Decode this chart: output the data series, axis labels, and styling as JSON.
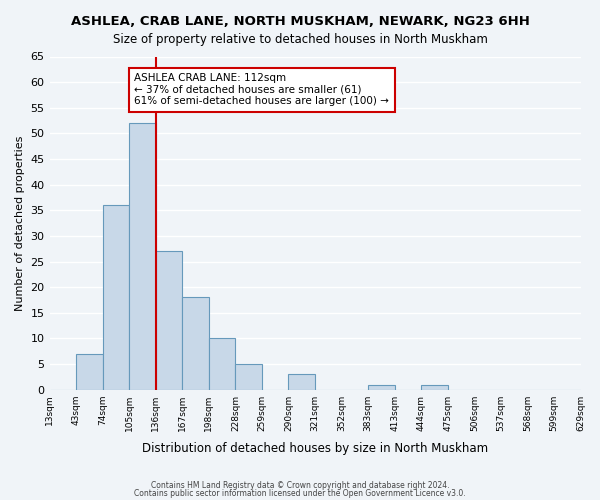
{
  "title": "ASHLEA, CRAB LANE, NORTH MUSKHAM, NEWARK, NG23 6HH",
  "subtitle": "Size of property relative to detached houses in North Muskham",
  "xlabel": "Distribution of detached houses by size in North Muskham",
  "ylabel": "Number of detached properties",
  "bar_color": "#c8d8e8",
  "bar_edge_color": "#6699bb",
  "vline_color": "#cc0000",
  "vline_x": 4,
  "bin_labels": [
    "13sqm",
    "43sqm",
    "74sqm",
    "105sqm",
    "136sqm",
    "167sqm",
    "198sqm",
    "228sqm",
    "259sqm",
    "290sqm",
    "321sqm",
    "352sqm",
    "383sqm",
    "413sqm",
    "444sqm",
    "475sqm",
    "506sqm",
    "537sqm",
    "568sqm",
    "599sqm",
    "629sqm"
  ],
  "bar_values": [
    0,
    7,
    36,
    52,
    27,
    18,
    10,
    5,
    0,
    3,
    0,
    0,
    1,
    0,
    1,
    0,
    0,
    0,
    0,
    0
  ],
  "ylim": [
    0,
    65
  ],
  "yticks": [
    0,
    5,
    10,
    15,
    20,
    25,
    30,
    35,
    40,
    45,
    50,
    55,
    60,
    65
  ],
  "annotation_title": "ASHLEA CRAB LANE: 112sqm",
  "annotation_line1": "← 37% of detached houses are smaller (61)",
  "annotation_line2": "61% of semi-detached houses are larger (100) →",
  "annotation_box_color": "#ffffff",
  "annotation_box_edge": "#cc0000",
  "footer1": "Contains HM Land Registry data © Crown copyright and database right 2024.",
  "footer2": "Contains public sector information licensed under the Open Government Licence v3.0.",
  "background_color": "#f0f4f8",
  "grid_color": "#ffffff"
}
